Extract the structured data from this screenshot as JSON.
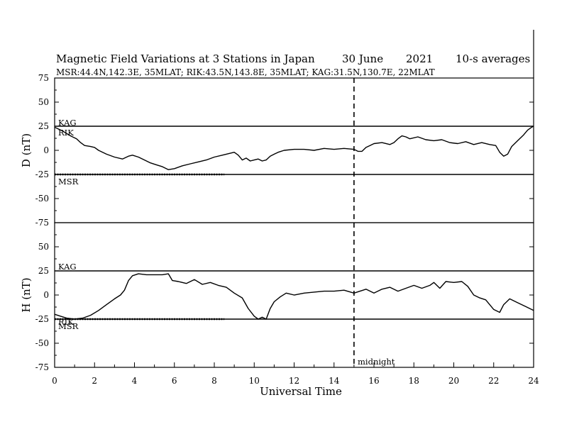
{
  "header": {
    "title": "Magnetic Field Variations at 3 Stations in Japan",
    "date": "30 June",
    "year": "2021",
    "averaging": "10-s averages",
    "stations_line": "MSR:44.4N,142.3E, 35MLAT;  RIK:43.5N,143.8E, 35MLAT;  KAG:31.5N,130.7E, 22MLAT"
  },
  "annotations": {
    "midnight": "midnight"
  },
  "chart_data": [
    {
      "type": "line",
      "ylabel": "D (nT)",
      "xlabel": "",
      "xlim": [
        0,
        24
      ],
      "ylim": [
        -75,
        75
      ],
      "yticks": [
        "75",
        "50",
        "25",
        "0",
        "-25",
        "-50",
        "-75"
      ],
      "baselines": [
        {
          "name": "KAG",
          "value": 25
        },
        {
          "name": "MSR",
          "value": -25
        }
      ],
      "labels": [
        "KAG",
        "RIK",
        "MSR"
      ],
      "vline": 15,
      "series": [
        {
          "name": "RIK",
          "x": [
            0,
            0.4,
            0.8,
            1.1,
            1.3,
            1.5,
            1.8,
            2.0,
            2.2,
            2.6,
            3.0,
            3.4,
            3.7,
            3.9,
            4.2,
            4.5,
            4.8,
            5.1,
            5.4,
            5.7,
            6.0,
            6.4,
            6.8,
            7.2,
            7.6,
            8.0,
            8.4,
            8.8,
            9.0,
            9.2,
            9.4,
            9.6,
            9.8,
            10.0,
            10.2,
            10.4,
            10.6,
            10.8,
            11.0,
            11.2,
            11.5,
            12.0,
            12.5,
            13.0,
            13.5,
            14.0,
            14.5,
            15.0,
            15.2,
            15.4,
            15.6,
            15.8,
            16.0,
            16.4,
            16.8,
            17.0,
            17.2,
            17.4,
            17.6,
            17.8,
            18.2,
            18.6,
            19.0,
            19.4,
            19.8,
            20.2,
            20.6,
            21.0,
            21.4,
            21.8,
            22.1,
            22.3,
            22.5,
            22.7,
            22.9,
            23.2,
            23.5,
            23.7,
            23.9,
            24.0
          ],
          "y": [
            24,
            20,
            15,
            12,
            8,
            5,
            4,
            3,
            0,
            -4,
            -7,
            -9,
            -6,
            -5,
            -7,
            -10,
            -13,
            -15,
            -17,
            -20,
            -19,
            -16,
            -14,
            -12,
            -10,
            -7,
            -5,
            -3,
            -2,
            -5,
            -10,
            -8,
            -11,
            -10,
            -9,
            -11,
            -10,
            -6,
            -4,
            -2,
            0,
            1,
            1,
            0,
            2,
            1,
            2,
            1,
            -1,
            -1,
            3,
            5,
            7,
            8,
            6,
            8,
            12,
            15,
            14,
            12,
            14,
            11,
            10,
            11,
            8,
            7,
            9,
            6,
            8,
            6,
            5,
            -2,
            -6,
            -4,
            4,
            10,
            16,
            21,
            24,
            25
          ]
        },
        {
          "name": "MSR",
          "x": [
            0,
            0.5,
            1.0,
            1.5,
            2.0,
            2.5,
            3.0,
            3.5,
            4.0,
            4.5,
            5.0,
            5.5,
            6.0,
            6.5,
            7.0,
            7.5,
            8.0,
            8.5
          ],
          "y": [
            -25,
            -25,
            -25,
            -25,
            -25,
            -25,
            -25,
            -25,
            -25,
            -25,
            -25,
            -25,
            -25,
            -25,
            -25,
            -25,
            -25,
            -25
          ]
        }
      ]
    },
    {
      "type": "line",
      "ylabel": "H (nT)",
      "xlabel": "Universal Time",
      "xlim": [
        0,
        24
      ],
      "ylim": [
        -75,
        75
      ],
      "yticks": [
        "75",
        "50",
        "25",
        "0",
        "-25",
        "-50",
        "-75"
      ],
      "xticks": [
        "0",
        "2",
        "4",
        "6",
        "8",
        "10",
        "12",
        "14",
        "16",
        "18",
        "20",
        "22",
        "24"
      ],
      "baselines": [
        {
          "name": "KAG",
          "value": 25
        },
        {
          "name": "MSR",
          "value": -25
        }
      ],
      "labels": [
        "KAG",
        "RIK",
        "MSR"
      ],
      "vline": 15,
      "series": [
        {
          "name": "RIK",
          "x": [
            0,
            0.3,
            0.6,
            1.0,
            1.4,
            1.8,
            2.2,
            2.6,
            3.0,
            3.3,
            3.5,
            3.7,
            3.9,
            4.2,
            4.6,
            5.0,
            5.4,
            5.7,
            5.9,
            6.2,
            6.6,
            7.0,
            7.4,
            7.8,
            8.2,
            8.6,
            9.0,
            9.4,
            9.7,
            10.0,
            10.2,
            10.4,
            10.6,
            10.8,
            11.0,
            11.3,
            11.6,
            12.0,
            12.5,
            13.0,
            13.5,
            14.0,
            14.5,
            15.0,
            15.3,
            15.6,
            16.0,
            16.4,
            16.8,
            17.2,
            17.6,
            18.0,
            18.4,
            18.8,
            19.0,
            19.3,
            19.6,
            20.0,
            20.4,
            20.7,
            21.0,
            21.3,
            21.6,
            21.8,
            22.0,
            22.3,
            22.5,
            22.8,
            23.2,
            23.6,
            24.0
          ],
          "y": [
            -20,
            -22,
            -24,
            -25,
            -24,
            -21,
            -16,
            -10,
            -4,
            0,
            5,
            15,
            20,
            22,
            21,
            21,
            21,
            22,
            15,
            14,
            12,
            16,
            11,
            13,
            10,
            8,
            2,
            -3,
            -14,
            -22,
            -25,
            -23,
            -25,
            -14,
            -7,
            -2,
            2,
            0,
            2,
            3,
            4,
            4,
            5,
            2,
            4,
            6,
            2,
            6,
            8,
            4,
            7,
            10,
            7,
            10,
            13,
            7,
            14,
            13,
            14,
            9,
            0,
            -3,
            -5,
            -10,
            -15,
            -18,
            -10,
            -4,
            -8,
            -12,
            -16
          ]
        },
        {
          "name": "MSR",
          "x": [
            0,
            0.5,
            1.0,
            1.5,
            2.0,
            2.5,
            3.0,
            3.5,
            4.0,
            4.5,
            5.0,
            5.5,
            6.0,
            6.5,
            7.0,
            7.5,
            8.0,
            8.5
          ],
          "y": [
            -25,
            -25,
            -25,
            -25,
            -25,
            -25,
            -25,
            -25,
            -25,
            -25,
            -25,
            -25,
            -25,
            -25,
            -25,
            -25,
            -25,
            -25
          ]
        }
      ]
    }
  ]
}
